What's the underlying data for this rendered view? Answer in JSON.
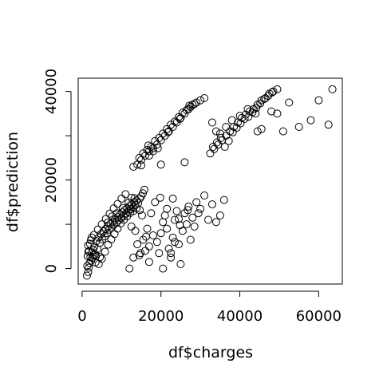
{
  "chart_data": {
    "type": "scatter",
    "title": "",
    "xlabel": "df$charges",
    "ylabel": "df$prediction",
    "xlim": [
      -1000,
      66000
    ],
    "ylim": [
      -3500,
      43000
    ],
    "xticks": [
      0,
      20000,
      40000,
      60000
    ],
    "yticks": [
      0,
      10000,
      20000,
      30000,
      40000
    ],
    "xtick_labels": [
      "0",
      "20000",
      "40000",
      "60000"
    ],
    "ytick_labels": [
      "0",
      "",
      "20000",
      "",
      "40000"
    ],
    "grid": false,
    "legend": "none",
    "marker": "open-circle",
    "series": [
      {
        "points": [
          [
            1200,
            -1600
          ],
          [
            1500,
            -800
          ],
          [
            1700,
            200
          ],
          [
            1900,
            1200
          ],
          [
            2100,
            2600
          ],
          [
            2300,
            1800
          ],
          [
            2500,
            3600
          ],
          [
            2800,
            4200
          ],
          [
            3100,
            5000
          ],
          [
            3300,
            3200
          ],
          [
            3600,
            6200
          ],
          [
            3900,
            4400
          ],
          [
            4200,
            7000
          ],
          [
            4500,
            5800
          ],
          [
            4800,
            7800
          ],
          [
            5100,
            6600
          ],
          [
            5400,
            8400
          ],
          [
            5700,
            7300
          ],
          [
            6000,
            9000
          ],
          [
            6300,
            8000
          ],
          [
            6600,
            9500
          ],
          [
            6900,
            8800
          ],
          [
            7200,
            10100
          ],
          [
            7500,
            9300
          ],
          [
            7800,
            10600
          ],
          [
            8100,
            9900
          ],
          [
            8400,
            11100
          ],
          [
            8700,
            10400
          ],
          [
            9000,
            11600
          ],
          [
            9300,
            10900
          ],
          [
            9600,
            12200
          ],
          [
            9900,
            11400
          ],
          [
            10200,
            12700
          ],
          [
            10500,
            11900
          ],
          [
            10800,
            13200
          ],
          [
            11100,
            12400
          ],
          [
            11400,
            13600
          ],
          [
            11700,
            12900
          ],
          [
            12000,
            14100
          ],
          [
            12300,
            13400
          ],
          [
            12600,
            14500
          ],
          [
            12900,
            13800
          ],
          [
            13200,
            15000
          ],
          [
            13500,
            14300
          ],
          [
            13800,
            15400
          ],
          [
            14200,
            14800
          ],
          [
            14600,
            15800
          ],
          [
            15000,
            16300
          ],
          [
            15400,
            17000
          ],
          [
            15800,
            17800
          ],
          [
            11000,
            16800
          ],
          [
            12500,
            16000
          ],
          [
            10000,
            15800
          ],
          [
            9000,
            14600
          ],
          [
            8000,
            13600
          ],
          [
            7000,
            12400
          ],
          [
            6000,
            11200
          ],
          [
            5000,
            10000
          ],
          [
            4000,
            8800
          ],
          [
            3000,
            7600
          ],
          [
            2200,
            6400
          ],
          [
            1500,
            5200
          ],
          [
            1800,
            4000
          ],
          [
            2600,
            2400
          ],
          [
            3400,
            1400
          ],
          [
            4200,
            1000
          ],
          [
            5000,
            2200
          ],
          [
            5800,
            3800
          ],
          [
            6600,
            5400
          ],
          [
            7400,
            6600
          ],
          [
            8200,
            7800
          ],
          [
            9000,
            9000
          ],
          [
            9800,
            10200
          ],
          [
            10600,
            11000
          ],
          [
            11400,
            11800
          ],
          [
            12200,
            12600
          ],
          [
            13000,
            13000
          ],
          [
            13800,
            13600
          ],
          [
            14600,
            13200
          ],
          [
            15200,
            12000
          ],
          [
            4500,
            2600
          ],
          [
            3500,
            2800
          ],
          [
            2800,
            3000
          ],
          [
            1300,
            600
          ],
          [
            1400,
            2800
          ],
          [
            1600,
            3800
          ],
          [
            2000,
            5600
          ],
          [
            2400,
            7000
          ],
          [
            6500,
            10400
          ],
          [
            7600,
            11800
          ],
          [
            8800,
            12500
          ],
          [
            10300,
            13700
          ],
          [
            11800,
            14900
          ],
          [
            13300,
            15900
          ],
          [
            12000,
            0
          ],
          [
            13000,
            2500
          ],
          [
            14500,
            3000
          ],
          [
            16000,
            4000
          ],
          [
            17000,
            5000
          ],
          [
            18000,
            7500
          ],
          [
            19000,
            6000
          ],
          [
            19500,
            3500
          ],
          [
            20000,
            8000
          ],
          [
            20500,
            10500
          ],
          [
            21000,
            12000
          ],
          [
            21500,
            9000
          ],
          [
            22000,
            4500
          ],
          [
            22500,
            2500
          ],
          [
            23000,
            7000
          ],
          [
            23500,
            11000
          ],
          [
            24000,
            13000
          ],
          [
            24500,
            5500
          ],
          [
            25000,
            1000
          ],
          [
            25500,
            8500
          ],
          [
            26000,
            12500
          ],
          [
            26500,
            10000
          ],
          [
            27000,
            14000
          ],
          [
            27500,
            6500
          ],
          [
            28000,
            11500
          ],
          [
            28500,
            9500
          ],
          [
            29000,
            15000
          ],
          [
            29500,
            12500
          ],
          [
            30000,
            13500
          ],
          [
            31000,
            16500
          ],
          [
            32000,
            11000
          ],
          [
            33000,
            14500
          ],
          [
            34000,
            10500
          ],
          [
            35000,
            12000
          ],
          [
            36000,
            15500
          ],
          [
            19800,
            16000
          ],
          [
            18500,
            15000
          ],
          [
            17500,
            12500
          ],
          [
            16500,
            9000
          ],
          [
            15500,
            6500
          ],
          [
            14000,
            5500
          ],
          [
            13500,
            8500
          ],
          [
            12500,
            9500
          ],
          [
            17000,
            1500
          ],
          [
            20500,
            0
          ],
          [
            22500,
            3500
          ],
          [
            23500,
            6000
          ],
          [
            24800,
            9800
          ],
          [
            26800,
            13200
          ],
          [
            21500,
            13500
          ],
          [
            23000,
            15800
          ],
          [
            24500,
            11200
          ],
          [
            14800,
            3500
          ],
          [
            16200,
            7200
          ],
          [
            13000,
            23000
          ],
          [
            14000,
            23500
          ],
          [
            15000,
            24500
          ],
          [
            16000,
            25500
          ],
          [
            17000,
            26500
          ],
          [
            18000,
            27200
          ],
          [
            19000,
            28000
          ],
          [
            20000,
            29000
          ],
          [
            21000,
            30000
          ],
          [
            22000,
            31000
          ],
          [
            23000,
            32000
          ],
          [
            24000,
            33000
          ],
          [
            25000,
            34000
          ],
          [
            26000,
            35000
          ],
          [
            27000,
            36000
          ],
          [
            28000,
            37000
          ],
          [
            29000,
            37500
          ],
          [
            30000,
            38000
          ],
          [
            31000,
            38500
          ],
          [
            14500,
            25000
          ],
          [
            15500,
            26000
          ],
          [
            16500,
            26800
          ],
          [
            17500,
            27500
          ],
          [
            18500,
            28800
          ],
          [
            19500,
            29500
          ],
          [
            20500,
            30500
          ],
          [
            21500,
            31500
          ],
          [
            22500,
            32500
          ],
          [
            23500,
            33200
          ],
          [
            24500,
            34200
          ],
          [
            25500,
            35200
          ],
          [
            26500,
            35800
          ],
          [
            27500,
            36500
          ],
          [
            28500,
            37200
          ],
          [
            17000,
            25500
          ],
          [
            18000,
            26500
          ],
          [
            20000,
            23500
          ],
          [
            26000,
            24000
          ],
          [
            15000,
            23300
          ],
          [
            16800,
            27800
          ],
          [
            19200,
            27200
          ],
          [
            21800,
            30800
          ],
          [
            24800,
            33800
          ],
          [
            27200,
            36800
          ],
          [
            33000,
            33000
          ],
          [
            32500,
            26000
          ],
          [
            33500,
            27000
          ],
          [
            34500,
            28000
          ],
          [
            35500,
            29000
          ],
          [
            36500,
            30000
          ],
          [
            37500,
            31000
          ],
          [
            38500,
            32000
          ],
          [
            39500,
            33000
          ],
          [
            40500,
            34000
          ],
          [
            41500,
            34800
          ],
          [
            42500,
            35500
          ],
          [
            43500,
            36000
          ],
          [
            44500,
            37000
          ],
          [
            45500,
            38000
          ],
          [
            46500,
            38500
          ],
          [
            47500,
            39500
          ],
          [
            48500,
            40000
          ],
          [
            49500,
            40500
          ],
          [
            33200,
            27500
          ],
          [
            34200,
            28500
          ],
          [
            35200,
            29500
          ],
          [
            36200,
            27500
          ],
          [
            37200,
            28800
          ],
          [
            38200,
            30800
          ],
          [
            39200,
            31800
          ],
          [
            40200,
            32800
          ],
          [
            41200,
            33800
          ],
          [
            42200,
            34300
          ],
          [
            43200,
            35300
          ],
          [
            44200,
            36300
          ],
          [
            45200,
            37300
          ],
          [
            46200,
            38300
          ],
          [
            47200,
            39000
          ],
          [
            48200,
            39800
          ],
          [
            34000,
            31000
          ],
          [
            35000,
            30500
          ],
          [
            36500,
            32000
          ],
          [
            38000,
            33500
          ],
          [
            40000,
            34500
          ],
          [
            42000,
            36000
          ],
          [
            44000,
            35000
          ],
          [
            45500,
            31500
          ],
          [
            44500,
            31000
          ],
          [
            48000,
            35500
          ],
          [
            49500,
            35000
          ],
          [
            51000,
            31000
          ],
          [
            52500,
            37500
          ],
          [
            55000,
            32000
          ],
          [
            58000,
            33500
          ],
          [
            60000,
            38000
          ],
          [
            62500,
            32500
          ],
          [
            63500,
            40500
          ]
        ]
      }
    ]
  }
}
